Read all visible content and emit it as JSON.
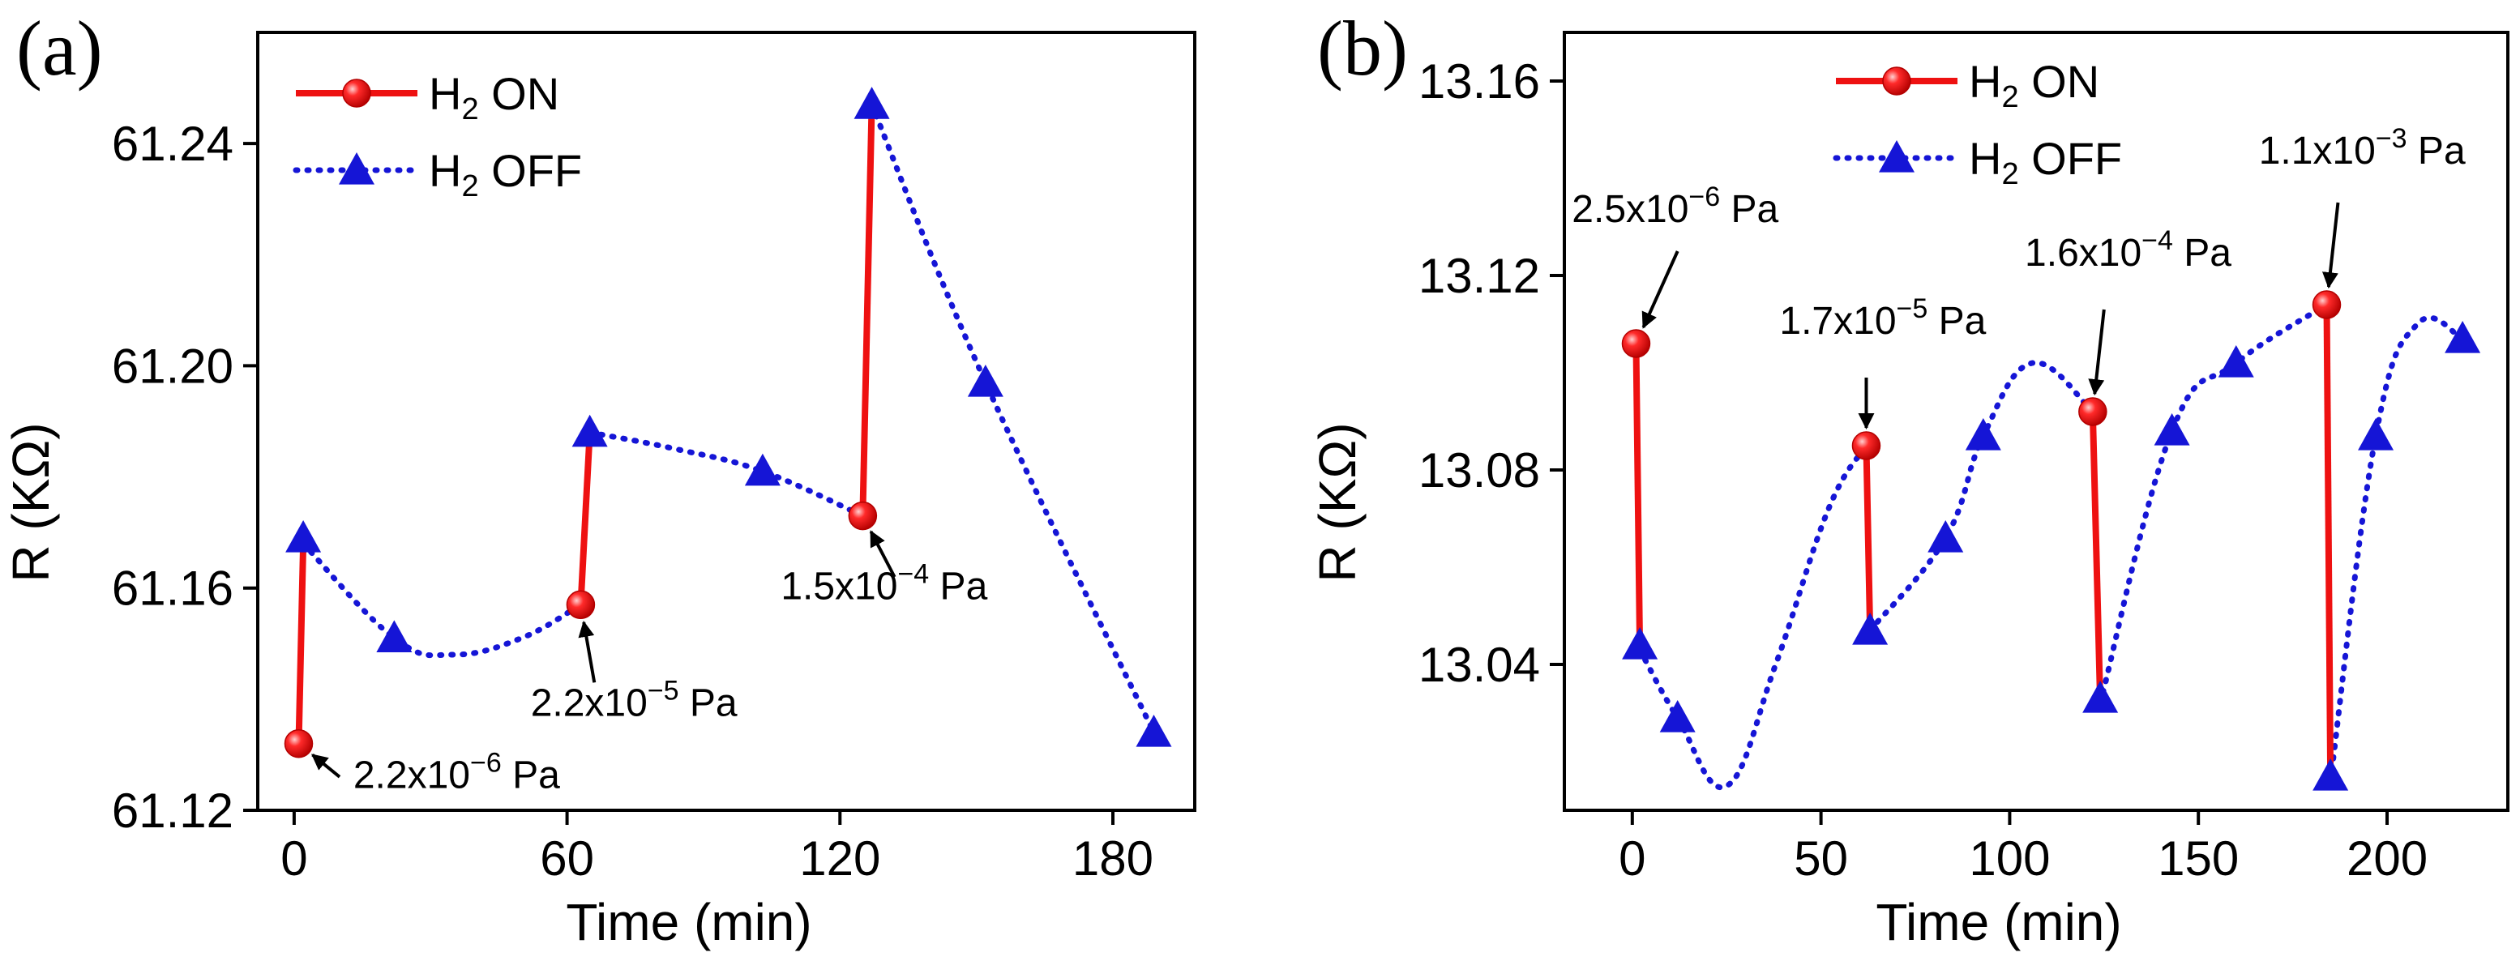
{
  "chart_data": [
    {
      "type": "line",
      "panel_label": "(a)",
      "xlabel": "Time (min)",
      "ylabel": "R (KΩ)",
      "xlim": [
        -8,
        198
      ],
      "ylim": [
        61.12,
        61.26
      ],
      "xticks": [
        0,
        60,
        120,
        180
      ],
      "yticks": [
        61.12,
        61.16,
        61.2,
        61.24
      ],
      "xtick_labels": [
        "0",
        "60",
        "120",
        "180"
      ],
      "ytick_labels": [
        "61.12",
        "61.16",
        "61.20",
        "61.24"
      ],
      "legend": {
        "position": "top-left",
        "on_label": "H",
        "on_sub": "2",
        "on_suffix": " ON",
        "off_label": "H",
        "off_sub": "2",
        "off_suffix": " OFF"
      },
      "series": [
        {
          "name": "H2 ON",
          "color": "#ee1111",
          "line_style": "solid",
          "marker": "circle",
          "segments": [
            [
              [
                1,
                61.132
              ],
              [
                2,
                61.168
              ]
            ],
            [
              [
                63,
                61.157
              ],
              [
                65,
                61.188
              ]
            ],
            [
              [
                125,
                61.173
              ],
              [
                127,
                61.247
              ]
            ]
          ]
        },
        {
          "name": "H2 OFF",
          "color": "#1515d6",
          "line_style": "dotted",
          "marker": "triangle",
          "segments": [
            [
              [
                2,
                61.168
              ],
              [
                22,
                61.151
              ],
              [
                35,
                61.148
              ],
              [
                50,
                61.151
              ],
              [
                63,
                61.157
              ]
            ],
            [
              [
                65,
                61.188
              ],
              [
                84,
                61.185
              ],
              [
                103,
                61.181
              ],
              [
                125,
                61.173
              ]
            ],
            [
              [
                127,
                61.247
              ],
              [
                152,
                61.197
              ],
              [
                189,
                61.134
              ]
            ]
          ],
          "marker_points": [
            [
              2,
              61.169
            ],
            [
              22,
              61.151
            ],
            [
              65,
              61.188
            ],
            [
              103,
              61.181
            ],
            [
              127,
              61.247
            ],
            [
              152,
              61.197
            ],
            [
              189,
              61.134
            ]
          ]
        }
      ],
      "annotations": [
        {
          "base": "2.2x10",
          "exp": "−6",
          "unit": " Pa",
          "point": [
            1,
            61.132
          ],
          "text_at": [
            13,
            61.124
          ],
          "arrow_from": [
            10,
            61.126
          ]
        },
        {
          "base": "2.2x10",
          "exp": "−5",
          "unit": " Pa",
          "point": [
            63,
            61.157
          ],
          "text_at": [
            52,
            61.137
          ],
          "arrow_from": [
            66,
            61.143
          ]
        },
        {
          "base": "1.5x10",
          "exp": "−4",
          "unit": " Pa",
          "point": [
            125,
            61.173
          ],
          "text_at": [
            107,
            61.158
          ],
          "arrow_from": [
            132,
            61.162
          ]
        }
      ]
    },
    {
      "type": "line",
      "panel_label": "(b)",
      "xlabel": "Time (min)",
      "ylabel": "R (KΩ)",
      "xlim": [
        -18,
        232
      ],
      "ylim": [
        13.01,
        13.17
      ],
      "xticks": [
        0,
        50,
        100,
        150,
        200
      ],
      "yticks": [
        13.04,
        13.08,
        13.12,
        13.16
      ],
      "xtick_labels": [
        "0",
        "50",
        "100",
        "150",
        "200"
      ],
      "ytick_labels": [
        "13.04",
        "13.08",
        "13.12",
        "13.16"
      ],
      "legend": {
        "position": "top-center",
        "on_label": "H",
        "on_sub": "2",
        "on_suffix": " ON",
        "off_label": "H",
        "off_sub": "2",
        "off_suffix": " OFF"
      },
      "series": [
        {
          "name": "H2 ON",
          "color": "#ee1111",
          "line_style": "solid",
          "marker": "circle",
          "segments": [
            [
              [
                1,
                13.106
              ],
              [
                2,
                13.043
              ]
            ],
            [
              [
                62,
                13.085
              ],
              [
                63,
                13.047
              ]
            ],
            [
              [
                122,
                13.092
              ],
              [
                124,
                13.032
              ]
            ],
            [
              [
                184,
                13.114
              ],
              [
                185,
                13.016
              ]
            ]
          ]
        },
        {
          "name": "H2 OFF",
          "color": "#1515d6",
          "line_style": "dotted",
          "marker": "triangle",
          "segments": [
            [
              [
                2,
                13.043
              ],
              [
                12,
                13.029
              ],
              [
                25,
                13.015
              ],
              [
                38,
                13.04
              ],
              [
                52,
                13.072
              ],
              [
                62,
                13.085
              ]
            ],
            [
              [
                63,
                13.047
              ],
              [
                83,
                13.066
              ],
              [
                93,
                13.087
              ],
              [
                106,
                13.102
              ],
              [
                122,
                13.092
              ]
            ],
            [
              [
                124,
                13.032
              ],
              [
                143,
                13.088
              ],
              [
                160,
                13.102
              ],
              [
                184,
                13.114
              ]
            ],
            [
              [
                185,
                13.016
              ],
              [
                197,
                13.087
              ],
              [
                208,
                13.11
              ],
              [
                220,
                13.107
              ]
            ]
          ],
          "marker_points": [
            [
              2,
              13.044
            ],
            [
              12,
              13.029
            ],
            [
              63,
              13.047
            ],
            [
              83,
              13.066
            ],
            [
              93,
              13.087
            ],
            [
              124,
              13.033
            ],
            [
              143,
              13.088
            ],
            [
              160,
              13.102
            ],
            [
              185,
              13.017
            ],
            [
              197,
              13.087
            ],
            [
              220,
              13.107
            ]
          ]
        }
      ],
      "annotations": [
        {
          "base": "2.5x10",
          "exp": "−6",
          "unit": " Pa",
          "point": [
            1,
            13.106
          ],
          "text_at": [
            -16,
            13.131
          ],
          "arrow_from": [
            12,
            13.125
          ]
        },
        {
          "base": "1.7x10",
          "exp": "−5",
          "unit": " Pa",
          "point": [
            62,
            13.085
          ],
          "text_at": [
            39,
            13.108
          ],
          "arrow_from": [
            62,
            13.099
          ]
        },
        {
          "base": "1.6x10",
          "exp": "−4",
          "unit": " Pa",
          "point": [
            122,
            13.092
          ],
          "text_at": [
            104,
            13.122
          ],
          "arrow_from": [
            125,
            13.113
          ]
        },
        {
          "base": "1.1x10",
          "exp": "−3",
          "unit": " Pa",
          "point": [
            184,
            13.114
          ],
          "text_at": [
            166,
            13.143
          ],
          "arrow_from": [
            187,
            13.135
          ]
        }
      ]
    }
  ]
}
